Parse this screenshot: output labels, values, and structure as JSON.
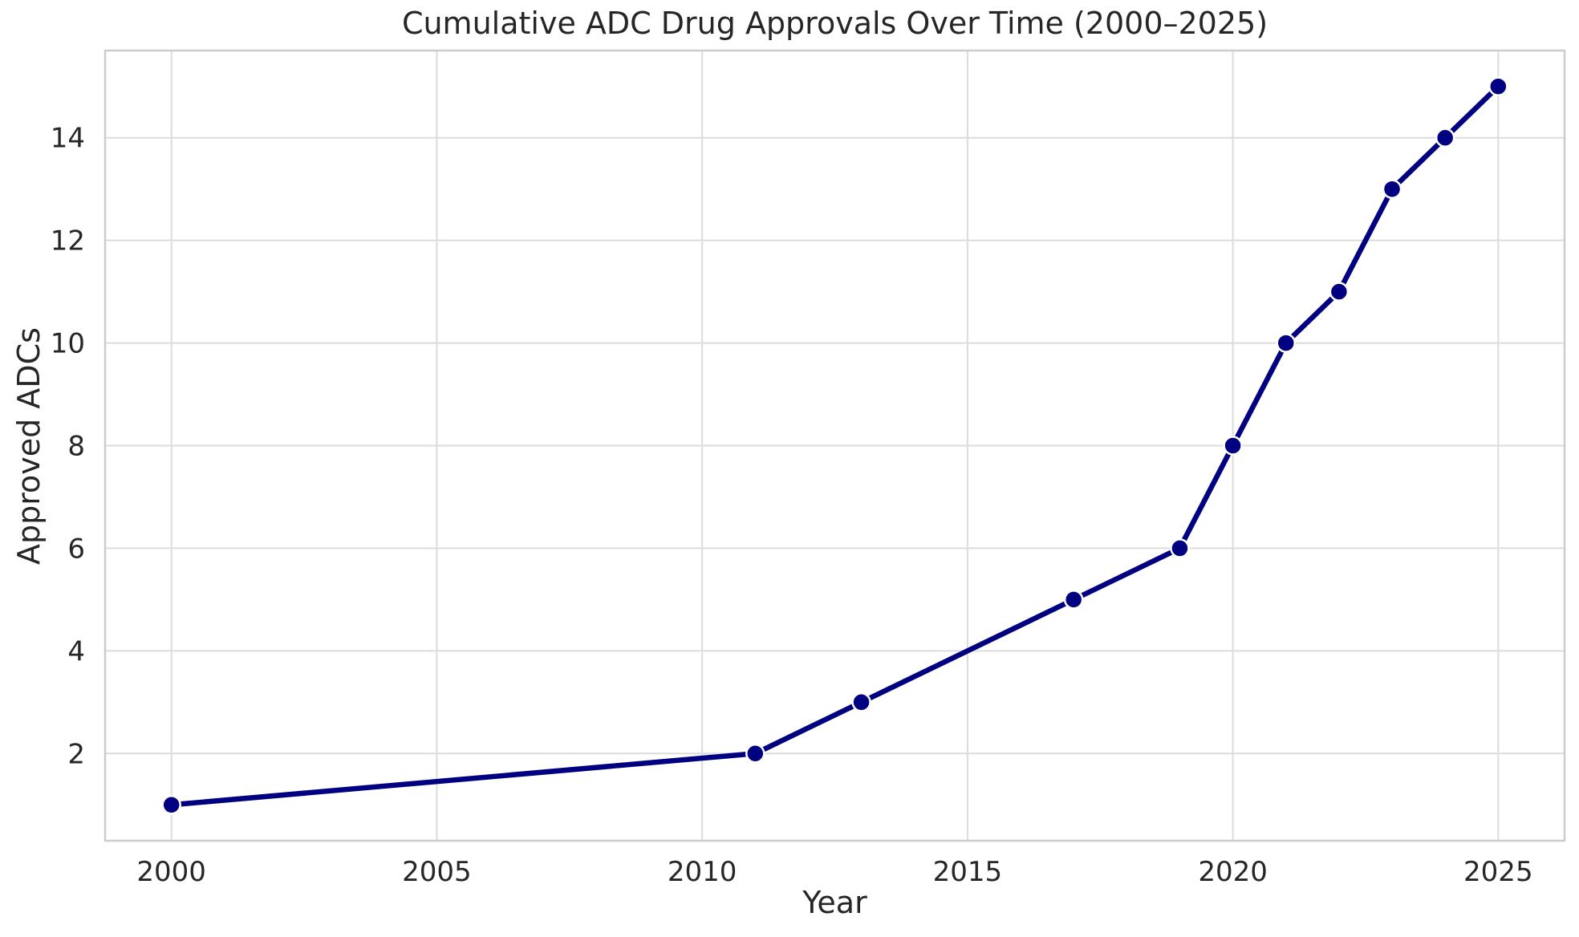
{
  "chart_data": {
    "type": "line",
    "title": "Cumulative ADC Drug Approvals Over Time (2000–2025)",
    "xlabel": "Year",
    "ylabel": "Approved ADCs",
    "x": [
      2000,
      2011,
      2013,
      2017,
      2019,
      2020,
      2021,
      2022,
      2023,
      2024,
      2025
    ],
    "y": [
      1,
      2,
      3,
      5,
      6,
      8,
      10,
      11,
      13,
      14,
      15
    ],
    "xlim": [
      1998.75,
      2026.25
    ],
    "ylim": [
      0.3,
      15.7
    ],
    "xticks": [
      2000,
      2005,
      2010,
      2015,
      2020,
      2025
    ],
    "yticks": [
      2,
      4,
      6,
      8,
      10,
      12,
      14
    ],
    "grid": true,
    "legend": "none",
    "style": {
      "line_color": "#000080",
      "marker_fill": "#000080",
      "marker_edge": "#ffffff",
      "grid_color": "#dcdcdc",
      "spine_color": "#cccccc",
      "text_color": "#262626",
      "background": "#ffffff"
    }
  }
}
